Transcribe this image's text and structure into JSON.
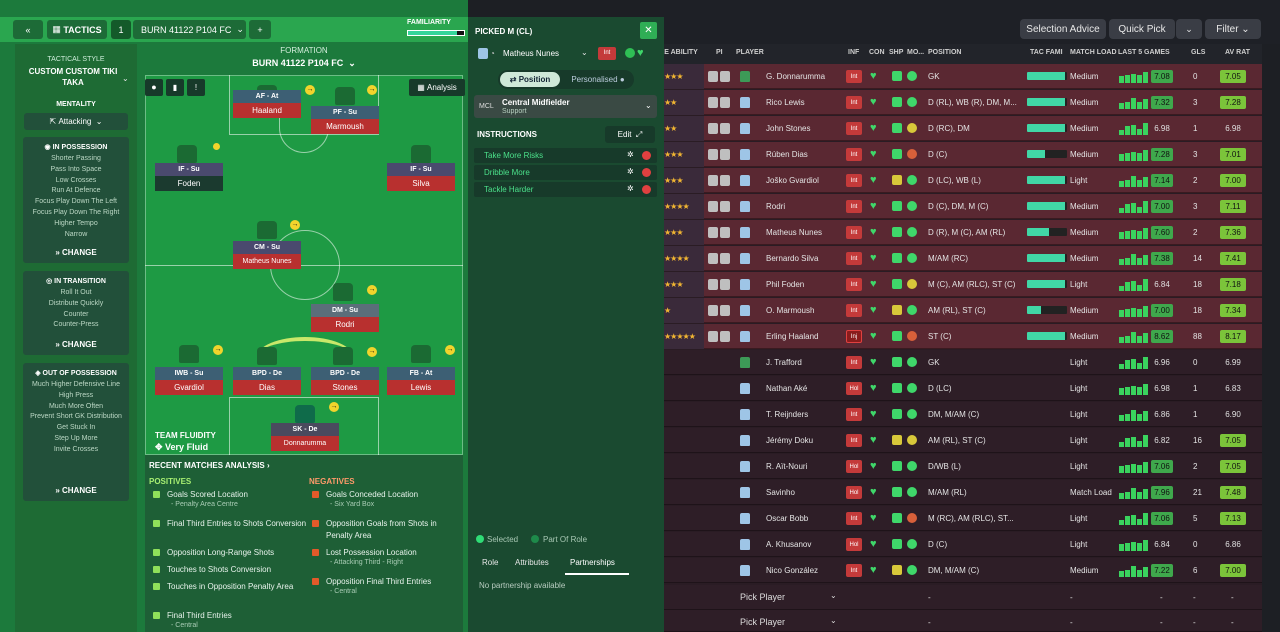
{
  "topbar": {
    "selection_advice": "Selection Advice",
    "quick_pick": "Quick Pick",
    "filter": "Filter"
  },
  "table": {
    "headers": {
      "ability": "LE ABILITY",
      "pi": "PI",
      "player": "PLAYER",
      "inf": "INF",
      "con": "CON",
      "shp": "SHP",
      "mo": "MO...",
      "position": "POSITION",
      "tac_fami": "TAC FAMI",
      "match_load": "MATCH LOAD",
      "last5": "LAST 5 GAMES",
      "gls": "GLS",
      "av_rat": "AV RAT"
    },
    "rows": [
      {
        "stars": "★★★",
        "name": "G. Donnarumma",
        "inf": "Int",
        "position": "GK",
        "tac": 0.95,
        "load": "Medium",
        "rating": "7.08",
        "gls": "0",
        "av": "7.05",
        "sel": true
      },
      {
        "stars": "★★",
        "name": "Rico Lewis",
        "inf": "Int",
        "position": "D (RL), WB (R), DM, M...",
        "tac": 0.95,
        "load": "Medium",
        "rating": "7.32",
        "gls": "3",
        "av": "7.28",
        "sel": true
      },
      {
        "stars": "★★",
        "name": "John Stones",
        "inf": "Int",
        "position": "D (RC), DM",
        "tac": 0.95,
        "load": "Medium",
        "rating": "6.98",
        "gls": "1",
        "av": "6.98",
        "sel": true
      },
      {
        "stars": "★★★",
        "name": "Rúben Dias",
        "inf": "Int",
        "position": "D (C)",
        "tac": 0.45,
        "load": "Medium",
        "rating": "7.28",
        "gls": "3",
        "av": "7.01",
        "sel": true
      },
      {
        "stars": "★★★",
        "name": "Joško Gvardiol",
        "inf": "Int",
        "position": "D (LC), WB (L)",
        "tac": 0.95,
        "load": "Light",
        "rating": "7.14",
        "gls": "2",
        "av": "7.00",
        "sel": true
      },
      {
        "stars": "★★★★",
        "name": "Rodri",
        "inf": "Int",
        "position": "D (C), DM, M (C)",
        "tac": 0.95,
        "load": "Medium",
        "rating": "7.00",
        "gls": "3",
        "av": "7.11",
        "sel": true
      },
      {
        "stars": "★★★",
        "name": "Matheus Nunes",
        "inf": "Int",
        "position": "D (R), M (C), AM (RL)",
        "tac": 0.55,
        "load": "Medium",
        "rating": "7.60",
        "gls": "2",
        "av": "7.36",
        "sel": true
      },
      {
        "stars": "★★★★",
        "name": "Bernardo Silva",
        "inf": "Int",
        "position": "M/AM (RC)",
        "tac": 0.95,
        "load": "Medium",
        "rating": "7.38",
        "gls": "14",
        "av": "7.41",
        "sel": true
      },
      {
        "stars": "★★★",
        "name": "Phil Foden",
        "inf": "Int",
        "position": "M (C), AM (RLC), ST (C)",
        "tac": 0.95,
        "load": "Light",
        "rating": "6.84",
        "gls": "18",
        "av": "7.18",
        "sel": true
      },
      {
        "stars": "★",
        "name": "O. Marmoush",
        "inf": "Int",
        "position": "AM (RL), ST (C)",
        "tac": 0.35,
        "load": "Medium",
        "rating": "7.00",
        "gls": "18",
        "av": "7.34",
        "sel": true
      },
      {
        "stars": "★★★★★",
        "name": "Erling Haaland",
        "inf": "Inj",
        "position": "ST (C)",
        "tac": 0.95,
        "load": "Medium",
        "rating": "8.62",
        "gls": "88",
        "av": "8.17",
        "sel": true
      },
      {
        "stars": "",
        "name": "J. Trafford",
        "inf": "Int",
        "position": "GK",
        "tac": 0,
        "load": "Light",
        "rating": "6.96",
        "gls": "0",
        "av": "6.99",
        "sel": false
      },
      {
        "stars": "",
        "name": "Nathan Aké",
        "inf": "Hol",
        "position": "D (LC)",
        "tac": 0,
        "load": "Light",
        "rating": "6.98",
        "gls": "1",
        "av": "6.83",
        "sel": false
      },
      {
        "stars": "",
        "name": "T. Reijnders",
        "inf": "Int",
        "position": "DM, M/AM (C)",
        "tac": 0,
        "load": "Light",
        "rating": "6.86",
        "gls": "1",
        "av": "6.90",
        "sel": false
      },
      {
        "stars": "",
        "name": "Jérémy Doku",
        "inf": "Int",
        "position": "AM (RL), ST (C)",
        "tac": 0,
        "load": "Light",
        "rating": "6.82",
        "gls": "16",
        "av": "7.05",
        "sel": false
      },
      {
        "stars": "",
        "name": "R. Aït-Nouri",
        "inf": "Hol",
        "position": "D/WB (L)",
        "tac": 0,
        "load": "Light",
        "rating": "7.06",
        "gls": "2",
        "av": "7.05",
        "sel": false
      },
      {
        "stars": "",
        "name": "Savinho",
        "inf": "Hol",
        "position": "M/AM (RL)",
        "tac": 0,
        "load": "Match Load",
        "rating": "7.96",
        "gls": "21",
        "av": "7.48",
        "sel": false
      },
      {
        "stars": "",
        "name": "Oscar Bobb",
        "inf": "Int",
        "position": "M (RC), AM (RLC), ST...",
        "tac": 0,
        "load": "Light",
        "rating": "7.06",
        "gls": "5",
        "av": "7.13",
        "sel": false
      },
      {
        "stars": "",
        "name": "A. Khusanov",
        "inf": "Hol",
        "position": "D (C)",
        "tac": 0,
        "load": "Light",
        "rating": "6.84",
        "gls": "0",
        "av": "6.86",
        "sel": false
      },
      {
        "stars": "",
        "name": "Nico González",
        "inf": "Int",
        "position": "DM, M/AM (C)",
        "tac": 0,
        "load": "Medium",
        "rating": "7.22",
        "gls": "6",
        "av": "7.00",
        "sel": false
      }
    ],
    "pick_player": "Pick Player",
    "dash": "-"
  },
  "tactics": {
    "tab_label": "TACTICS",
    "slot": "1",
    "tactic_name": "BURN 41122 P104 FC",
    "familiarity": "FAMILIARITY",
    "formation_label": "FORMATION",
    "formation_name": "BURN 41122 P104 FC",
    "analysis": "Analysis",
    "style_label": "TACTICAL STYLE",
    "style_name": "CUSTOM CUSTOM TIKI TAKA",
    "mentality_label": "MENTALITY",
    "mentality": "Attacking",
    "in_possession": {
      "title": "IN POSSESSION",
      "items": [
        "Shorter Passing",
        "Pass Into Space",
        "Low Crosses",
        "Run At Defence",
        "Focus Play Down The Left",
        "Focus Play Down The Right",
        "Higher Tempo",
        "Narrow"
      ]
    },
    "in_transition": {
      "title": "IN TRANSITION",
      "items": [
        "Roll It Out",
        "Distribute Quickly",
        "Counter",
        "Counter-Press"
      ]
    },
    "out_possession": {
      "title": "OUT OF POSSESSION",
      "items": [
        "Much Higher Defensive Line",
        "High Press",
        "Much More Often",
        "Prevent Short GK Distribution",
        "Get Stuck In",
        "Step Up More",
        "Invite Crosses"
      ]
    },
    "change": "CHANGE",
    "team_fluidity_label": "TEAM FLUIDITY",
    "team_fluidity": "Very Fluid",
    "players": [
      {
        "role": "AF - At",
        "name": "Haaland"
      },
      {
        "role": "PF - Su",
        "name": "Marmoush"
      },
      {
        "role": "IF - Su",
        "name": "Foden"
      },
      {
        "role": "IF - Su",
        "name": "Silva"
      },
      {
        "role": "CM - Su",
        "name": "Matheus Nunes"
      },
      {
        "role": "DM - Su",
        "name": "Rodri"
      },
      {
        "role": "IWB - Su",
        "name": "Gvardiol"
      },
      {
        "role": "BPD - De",
        "name": "Dias"
      },
      {
        "role": "BPD - De",
        "name": "Stones"
      },
      {
        "role": "FB - At",
        "name": "Lewis"
      },
      {
        "role": "SK - De",
        "name": "Donnarumma"
      }
    ]
  },
  "recent": {
    "title": "RECENT MATCHES ANALYSIS",
    "positives_label": "POSITIVES",
    "negatives_label": "NEGATIVES",
    "positives": [
      {
        "text": "Goals Scored Location",
        "sub": "- Penalty Area Centre"
      },
      {
        "text": "Final Third Entries to Shots Conversion",
        "sub": ""
      },
      {
        "text": "Opposition Long-Range Shots",
        "sub": ""
      },
      {
        "text": "Touches to Shots Conversion",
        "sub": ""
      },
      {
        "text": "Touches in Opposition Penalty Area",
        "sub": ""
      },
      {
        "text": "Final Third Entries",
        "sub": "- Central"
      }
    ],
    "negatives": [
      {
        "text": "Goals Conceded Location",
        "sub": "- Six Yard Box"
      },
      {
        "text": "Opposition Goals from Shots in Penalty Area",
        "sub": ""
      },
      {
        "text": "Lost Possession Location",
        "sub": "- Attacking Third - Right"
      },
      {
        "text": "Opposition Final Third Entries",
        "sub": "- Central"
      }
    ]
  },
  "picked": {
    "title": "PICKED M (CL)",
    "player": "Matheus Nunes",
    "badge": "Int",
    "position_tab": "Position",
    "personalised_tab": "Personalised",
    "role_code": "MCL",
    "role_name": "Central Midfielder",
    "role_duty": "Support",
    "instructions_label": "INSTRUCTIONS",
    "edit": "Edit",
    "instructions": [
      "Take More Risks",
      "Dribble More",
      "Tackle Harder"
    ],
    "legend_selected": "Selected",
    "legend_part": "Part Of Role",
    "tabs": [
      "Role",
      "Attributes",
      "Partnerships"
    ],
    "no_partnership": "No partnership available"
  }
}
